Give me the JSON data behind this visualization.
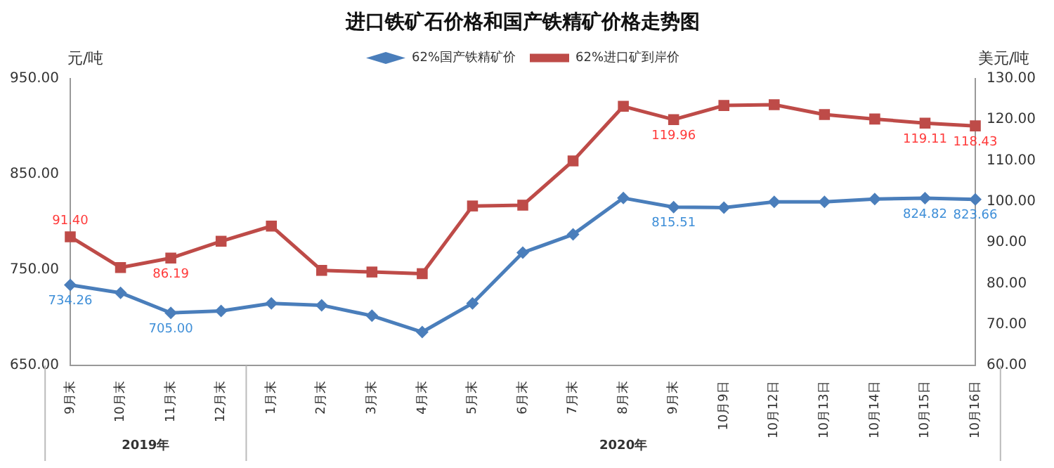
{
  "chart_data": {
    "type": "line",
    "title": "进口铁矿石价格和国产铁精矿价格走势图",
    "ylabel": "元/吨",
    "y2label": "美元/吨",
    "categories": [
      "9月末",
      "10月末",
      "11月末",
      "12月末",
      "1月末",
      "2月末",
      "3月末",
      "4月末",
      "5月末",
      "6月末",
      "7月末",
      "8月末",
      "9月末",
      "10月9日",
      "10月12日",
      "10月13日",
      "10月14日",
      "10月15日",
      "10月16日"
    ],
    "series": [
      {
        "name": "62%国产铁精矿价",
        "color": "#4a7ebb",
        "marker": "diamond",
        "values": [
          734.26,
          726,
          705,
          707,
          715,
          713,
          702,
          685,
          715,
          768,
          787,
          825,
          815.51,
          815,
          821,
          821,
          824,
          824.82,
          823.66
        ],
        "value_labels": [
          "734.26",
          null,
          "705.00",
          null,
          null,
          null,
          null,
          null,
          null,
          null,
          null,
          null,
          "815.51",
          null,
          null,
          null,
          null,
          "824.82",
          "823.66"
        ]
      },
      {
        "name": "62%进口矿到岸价",
        "color": "#be4b48",
        "marker": "square",
        "axis": "y2",
        "values": [
          91.4,
          83.9,
          86.19,
          90.3,
          94.0,
          83.2,
          82.8,
          82.4,
          98.9,
          99.1,
          109.9,
          123.2,
          119.96,
          123.4,
          123.6,
          121.2,
          120.1,
          119.11,
          118.43
        ],
        "value_labels": [
          "91.40",
          null,
          "86.19",
          null,
          null,
          null,
          null,
          null,
          null,
          null,
          null,
          null,
          "119.96",
          null,
          null,
          null,
          null,
          "119.11",
          "118.43"
        ]
      }
    ],
    "ylim": [
      650,
      950
    ],
    "yticks": [
      {
        "value": 650,
        "label": "650.00"
      },
      {
        "value": 750,
        "label": "750.00"
      },
      {
        "value": 850,
        "label": "850.00"
      },
      {
        "value": 950,
        "label": "950.00"
      }
    ],
    "y2lim": [
      60,
      130
    ],
    "y2ticks": [
      {
        "value": 60,
        "label": "60.00"
      },
      {
        "value": 70,
        "label": "70.00"
      },
      {
        "value": 80,
        "label": "80.00"
      },
      {
        "value": 90,
        "label": "90.00"
      },
      {
        "value": 100,
        "label": "100.00"
      },
      {
        "value": 110,
        "label": "110.00"
      },
      {
        "value": 120,
        "label": "120.00"
      },
      {
        "value": 130,
        "label": "130.00"
      }
    ],
    "annotations": [
      "2019年",
      "2020年"
    ],
    "grid": false,
    "legend": "top",
    "line_style": "solid"
  }
}
